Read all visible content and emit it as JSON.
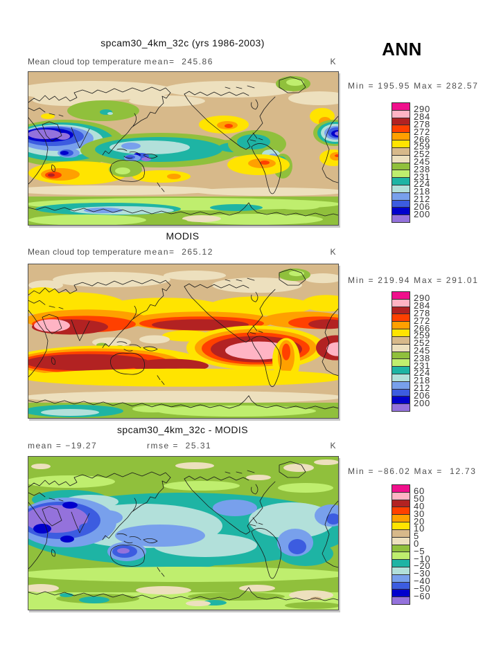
{
  "header": {
    "season_label": "ANN"
  },
  "colorbar": {
    "palette": [
      "#F0108C",
      "#FFB4C4",
      "#B22222",
      "#FF4000",
      "#FFA000",
      "#FFE400",
      "#D7B98A",
      "#EDE0BE",
      "#90C03C",
      "#BFEE6E",
      "#1EB4A4",
      "#B2E0DA",
      "#78A0EC",
      "#3C5CE0",
      "#0000CC",
      "#9472DC"
    ],
    "cell_border_color": "#2e2e2e"
  },
  "panels": [
    {
      "title": "spcam30_4km_32c (yrs 1986-2003)",
      "field_label": "Mean cloud top temperature",
      "mean_text": "mean=  245.86",
      "rmse_text": "",
      "unit": "K",
      "minmax": "Min = 195.95 Max = 282.57",
      "colorbar_labels": [
        "290",
        "284",
        "278",
        "272",
        "266",
        "259",
        "252",
        "245",
        "238",
        "231",
        "224",
        "218",
        "212",
        "206",
        "200"
      ]
    },
    {
      "title": "MODIS",
      "field_label": "Mean cloud top temperature",
      "mean_text": "mean=  265.12",
      "rmse_text": "",
      "unit": "K",
      "minmax": "Min = 219.94 Max = 291.01",
      "colorbar_labels": [
        "290",
        "284",
        "278",
        "272",
        "266",
        "259",
        "252",
        "245",
        "238",
        "231",
        "224",
        "218",
        "212",
        "206",
        "200"
      ]
    },
    {
      "title": "spcam30_4km_32c - MODIS",
      "field_label": "",
      "mean_text": "mean = −19.27",
      "rmse_text": "rmse =  25.31",
      "unit": "K",
      "minmax": "Min = −86.02 Max =  12.73",
      "colorbar_labels": [
        "60",
        "50",
        "40",
        "30",
        "20",
        "10",
        "5",
        "0",
        "−5",
        "−10",
        "−20",
        "−30",
        "−40",
        "−50",
        "−60"
      ]
    }
  ],
  "chart_data": [
    {
      "type": "heatmap",
      "subtype": "filled_contour_world_map",
      "panel": "top",
      "title": "spcam30_4km_32c (yrs 1986-2003)",
      "variable": "Mean cloud top temperature",
      "units": "K",
      "season": "ANN",
      "stats": {
        "mean": 245.86,
        "min": 195.95,
        "max": 282.57
      },
      "contour_levels": [
        200,
        206,
        212,
        218,
        224,
        231,
        238,
        245,
        252,
        259,
        266,
        272,
        278,
        284,
        290
      ],
      "palette": [
        "#F0108C",
        "#FFB4C4",
        "#B22222",
        "#FF4000",
        "#FFA000",
        "#FFE400",
        "#D7B98A",
        "#EDE0BE",
        "#90C03C",
        "#BFEE6E",
        "#1EB4A4",
        "#B2E0DA",
        "#78A0EC",
        "#3C5CE0",
        "#0000CC",
        "#9472DC"
      ],
      "projection": "global cylindrical lat-lon, Pacific-centered",
      "legend_position": "right"
    },
    {
      "type": "heatmap",
      "subtype": "filled_contour_world_map",
      "panel": "middle",
      "title": "MODIS",
      "variable": "Mean cloud top temperature",
      "units": "K",
      "season": "ANN",
      "stats": {
        "mean": 265.12,
        "min": 219.94,
        "max": 291.01
      },
      "contour_levels": [
        200,
        206,
        212,
        218,
        224,
        231,
        238,
        245,
        252,
        259,
        266,
        272,
        278,
        284,
        290
      ],
      "palette": [
        "#F0108C",
        "#FFB4C4",
        "#B22222",
        "#FF4000",
        "#FFA000",
        "#FFE400",
        "#D7B98A",
        "#EDE0BE",
        "#90C03C",
        "#BFEE6E",
        "#1EB4A4",
        "#B2E0DA",
        "#78A0EC",
        "#3C5CE0",
        "#0000CC",
        "#9472DC"
      ],
      "projection": "global cylindrical lat-lon, Pacific-centered",
      "legend_position": "right"
    },
    {
      "type": "heatmap",
      "subtype": "filled_contour_world_map",
      "panel": "bottom",
      "title": "spcam30_4km_32c - MODIS",
      "units": "K",
      "season": "ANN",
      "stats": {
        "mean": -19.27,
        "rmse": 25.31,
        "min": -86.02,
        "max": 12.73
      },
      "contour_levels": [
        -60,
        -50,
        -40,
        -30,
        -20,
        -10,
        -5,
        0,
        5,
        10,
        20,
        30,
        40,
        50,
        60
      ],
      "palette": [
        "#F0108C",
        "#FFB4C4",
        "#B22222",
        "#FF4000",
        "#FFA000",
        "#FFE400",
        "#D7B98A",
        "#EDE0BE",
        "#90C03C",
        "#BFEE6E",
        "#1EB4A4",
        "#B2E0DA",
        "#78A0EC",
        "#3C5CE0",
        "#0000CC",
        "#9472DC"
      ],
      "projection": "global cylindrical lat-lon, Pacific-centered",
      "legend_position": "right"
    }
  ]
}
